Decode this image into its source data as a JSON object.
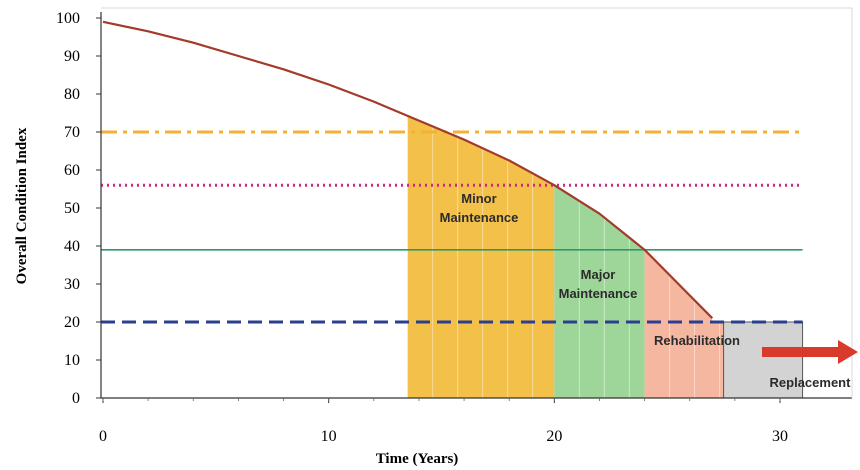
{
  "chart_data": {
    "type": "line",
    "xlabel": "Time (Years)",
    "ylabel": "Overall Condition Index",
    "xlim": [
      0,
      30
    ],
    "ylim": [
      0,
      100
    ],
    "xticks": [
      "0",
      "10",
      "20",
      "30"
    ],
    "yticks": [
      "0",
      "10",
      "20",
      "30",
      "40",
      "50",
      "60",
      "70",
      "80",
      "90",
      "100"
    ],
    "series": [
      {
        "x": [
          0,
          2,
          4,
          6,
          8,
          10,
          12,
          14,
          16,
          18,
          20,
          22,
          24,
          26,
          27
        ],
        "y": [
          99,
          96.5,
          93.5,
          90,
          86.5,
          82.5,
          78,
          73,
          68,
          62.5,
          56,
          48.5,
          39,
          27,
          21
        ],
        "color": "#a33a2a"
      }
    ],
    "thresholds": [
      {
        "y": 70,
        "style": "dash-dot",
        "color": "#f2b233"
      },
      {
        "y": 56,
        "style": "dotted",
        "color": "#cc2a7a"
      },
      {
        "y": 39,
        "style": "solid",
        "color": "#2e9a6a"
      },
      {
        "y": 20,
        "style": "dashed",
        "color": "#2a3f8f"
      }
    ],
    "zones": [
      {
        "label": "Minor Maintenance",
        "x_start": 13.5,
        "x_end": 20,
        "color": "#f3c04a"
      },
      {
        "label": "Major Maintenance",
        "x_start": 20,
        "x_end": 24,
        "color": "#9ed69a"
      },
      {
        "label": "Rehabilitation",
        "x_start": 24,
        "x_end": 27.5,
        "color": "#f6b7a0"
      },
      {
        "label": "Replacement",
        "x_start": 27.5,
        "x_end": 31,
        "color": "#d3d3d3"
      }
    ],
    "arrow_color": "#d93a2b",
    "grid": false
  }
}
